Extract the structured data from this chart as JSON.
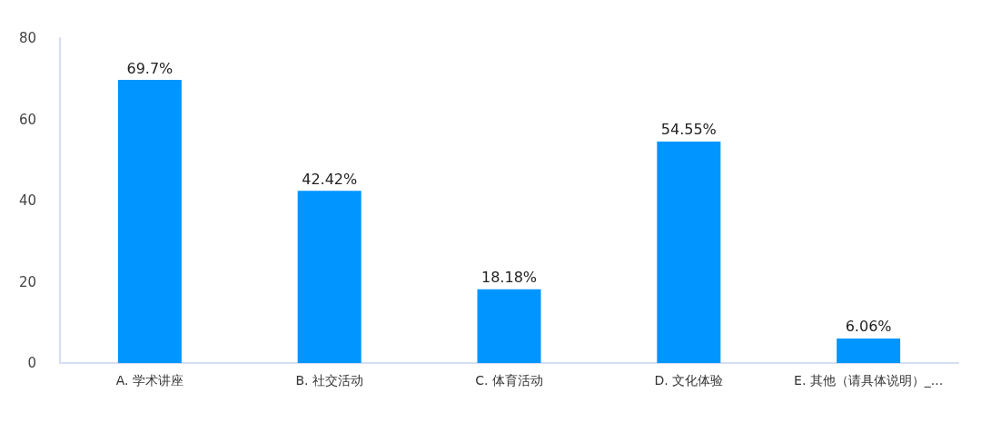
{
  "chart_data": {
    "type": "bar",
    "categories": [
      "A. 学术讲座",
      "B. 社交活动",
      "C. 体育活动",
      "D. 文化体验",
      "E. 其他（请具体说明）_..."
    ],
    "values": [
      69.7,
      42.42,
      18.18,
      54.55,
      6.06
    ],
    "value_labels": [
      "69.7%",
      "42.42%",
      "18.18%",
      "54.55%",
      "6.06%"
    ],
    "color": "#0095ff",
    "ylim": [
      0,
      80
    ],
    "yticks": [
      0,
      20,
      40,
      60,
      80
    ],
    "grid": false
  }
}
